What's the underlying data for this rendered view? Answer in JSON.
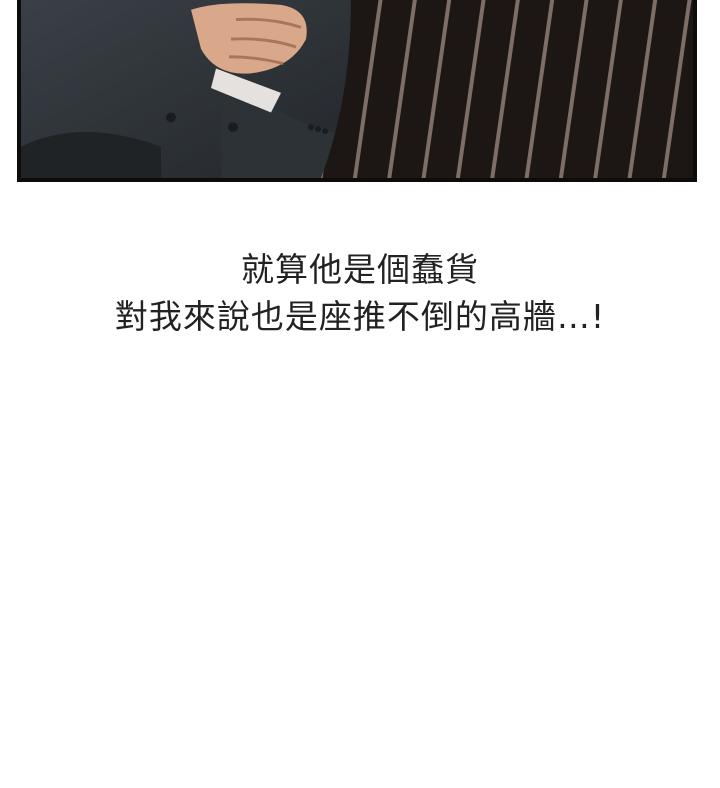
{
  "caption": {
    "line1": "就算他是個蠢貨",
    "line2": "對我來說也是座推不倒的高牆…!"
  }
}
